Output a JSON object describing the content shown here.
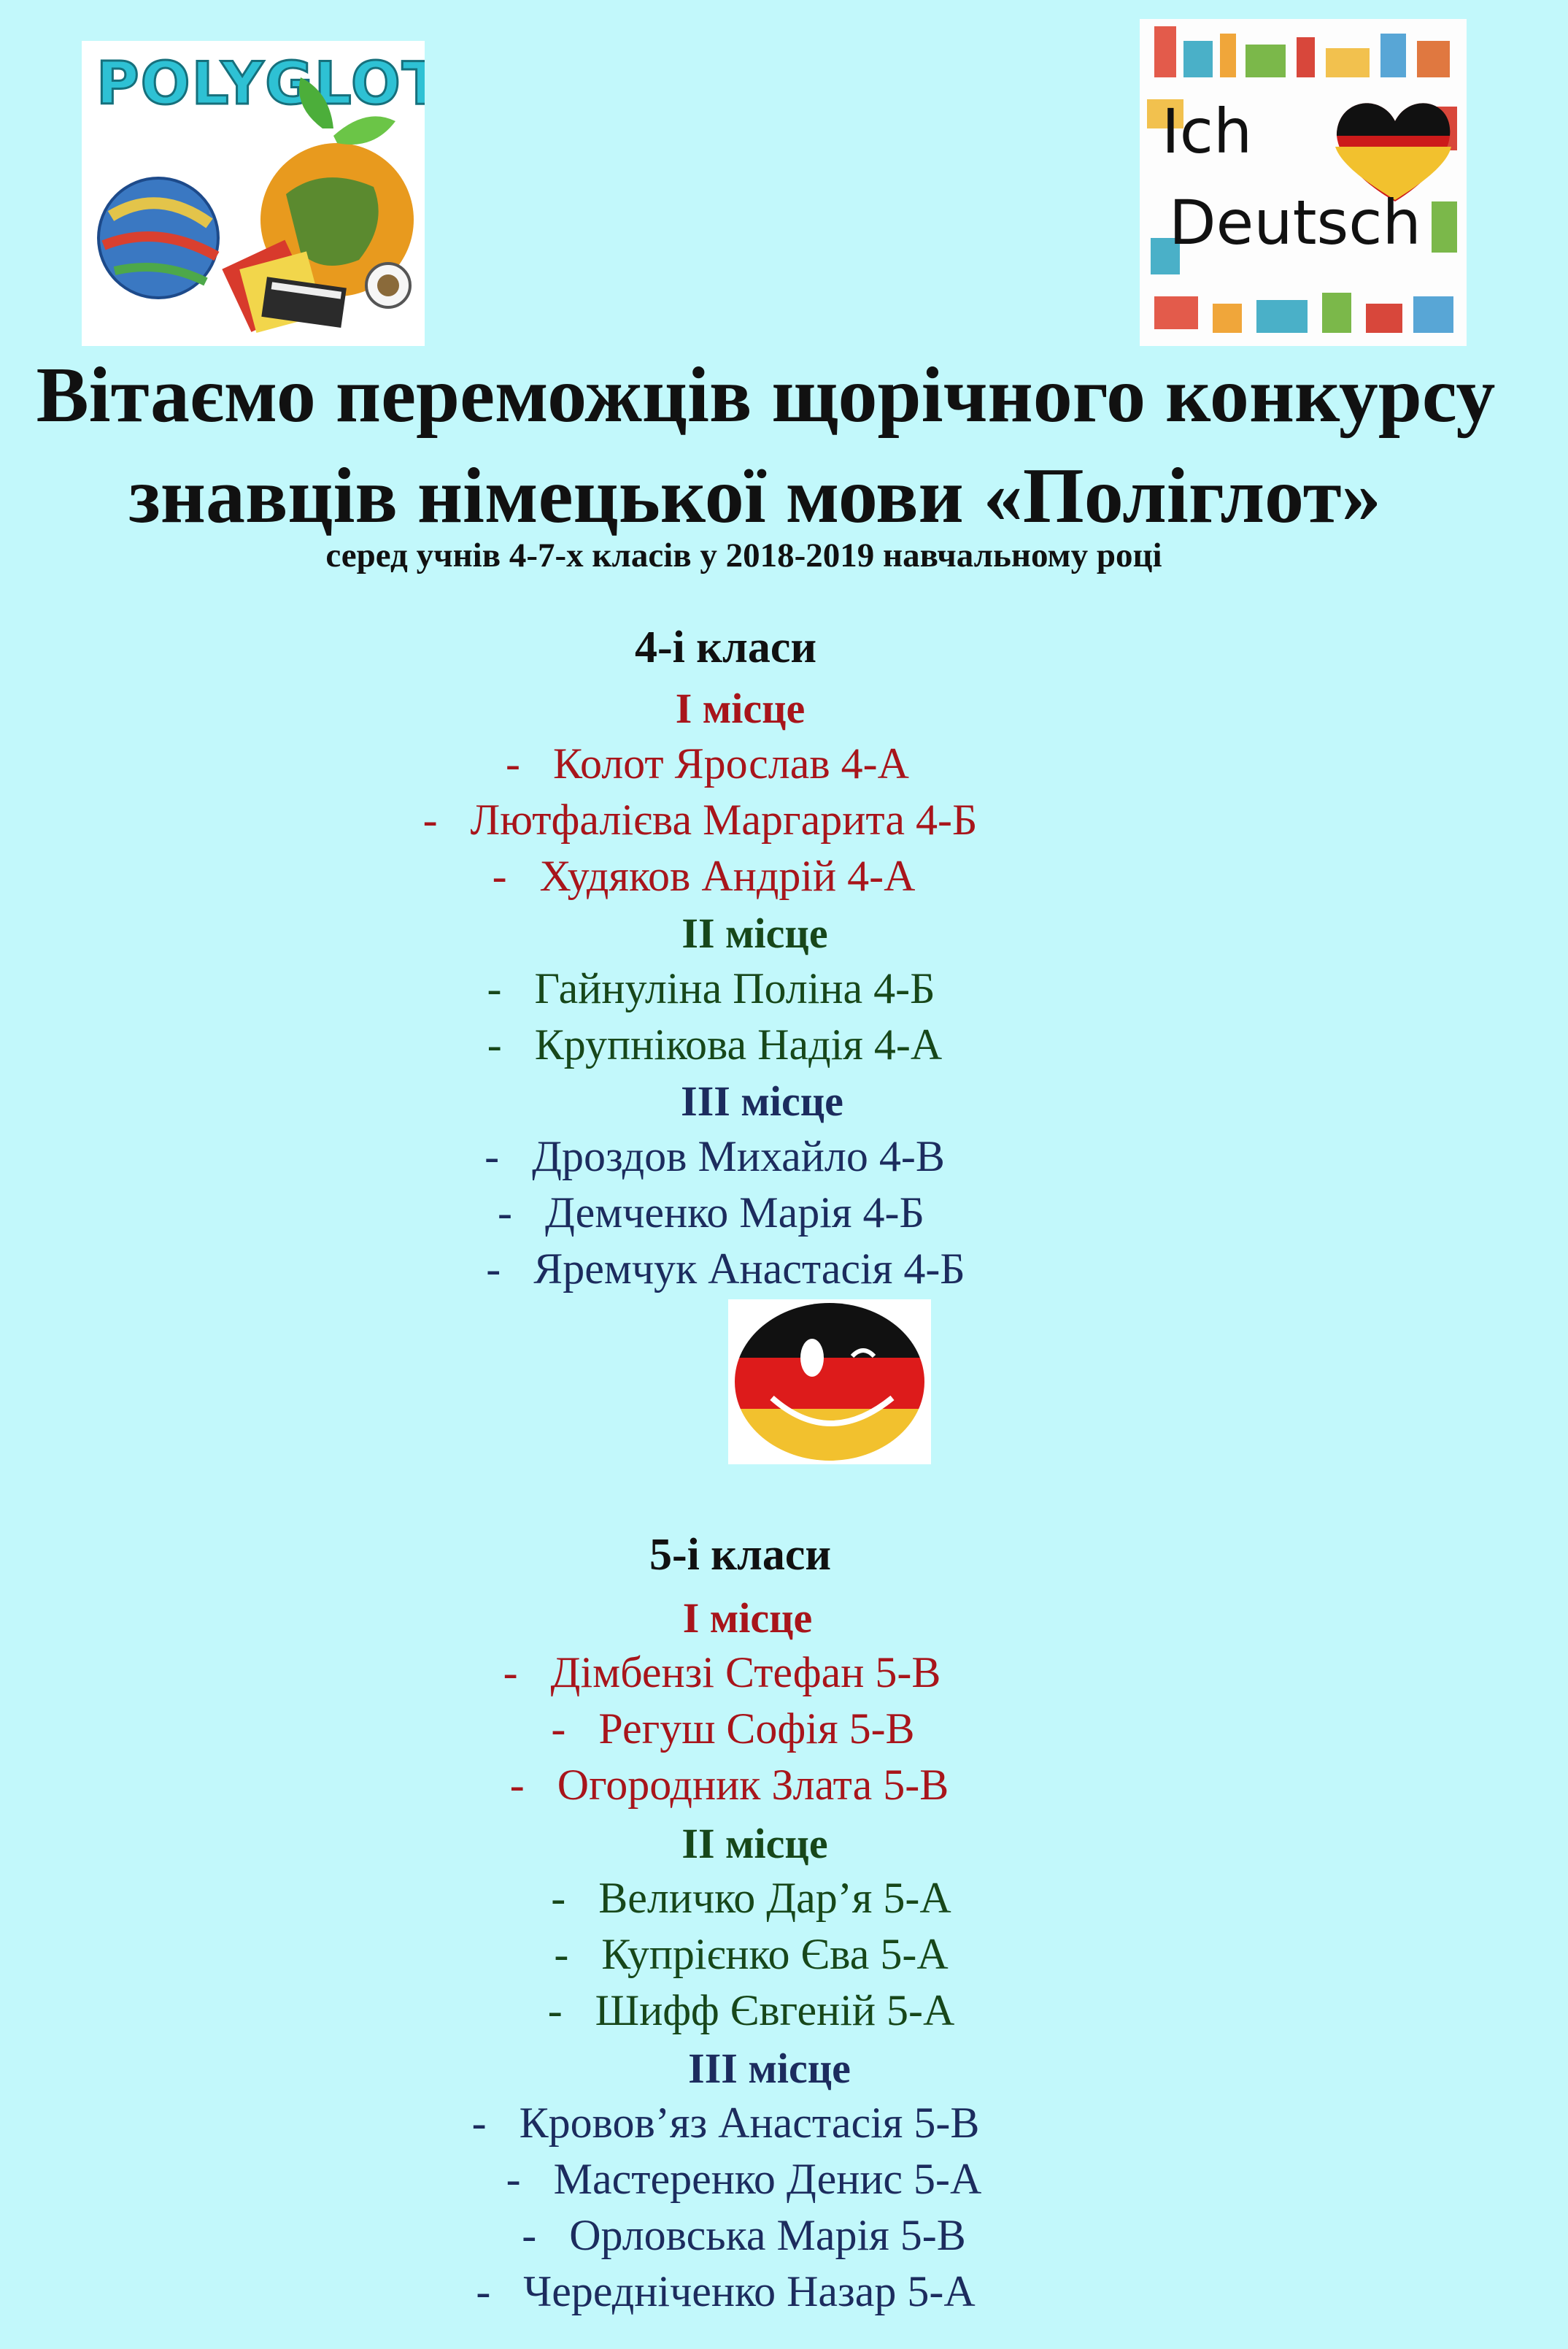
{
  "logos": {
    "polyglot_text": "POLYGLOT",
    "ich_text": "Ich",
    "deutsch_text": "Deutsch"
  },
  "title": {
    "line1": "Вітаємо переможців щорічного конкурсу",
    "line2": "знавців німецької мови «Поліглот»",
    "subtitle": "серед учнів  4-7-х класів у 2018-2019 навчальному році"
  },
  "colors": {
    "background": "#c2f8fb",
    "first_place": "#a8151b",
    "second_place": "#17471a",
    "third_place": "#1c2c5e"
  },
  "sections": [
    {
      "heading": "4-і класи",
      "places": [
        {
          "label": "I місце",
          "entries": [
            "-   Колот Ярослав 4-А",
            "-   Лютфалієва Маргарита 4-Б",
            "-   Худяков Андрій 4-А"
          ]
        },
        {
          "label": "II місце",
          "entries": [
            "-   Гайнуліна Поліна 4-Б",
            "-   Крупнікова Надія 4-А"
          ]
        },
        {
          "label": "III місце",
          "entries": [
            "-   Дроздов Михайло 4-В",
            "-   Демченко Марія 4-Б",
            "-   Яремчук Анастасія 4-Б"
          ]
        }
      ]
    },
    {
      "heading": "5-і класи",
      "places": [
        {
          "label": "I місце",
          "entries": [
            "-   Дімбензі Стефан 5-В",
            "-   Регуш Софія 5-В",
            "-   Огородник Злата 5-В"
          ]
        },
        {
          "label": "II місце",
          "entries": [
            "-   Величко Дар’я 5-А",
            "-   Купрієнко Єва 5-А",
            "-   Шифф Євгеній 5-А"
          ]
        },
        {
          "label": "III місце",
          "entries": [
            "-   Кровов’яз Анастасія 5-В",
            "-   Мастеренко Денис 5-А",
            "-   Орловська Марія 5-В",
            "-   Чередніченко Назар 5-А"
          ]
        }
      ]
    }
  ]
}
